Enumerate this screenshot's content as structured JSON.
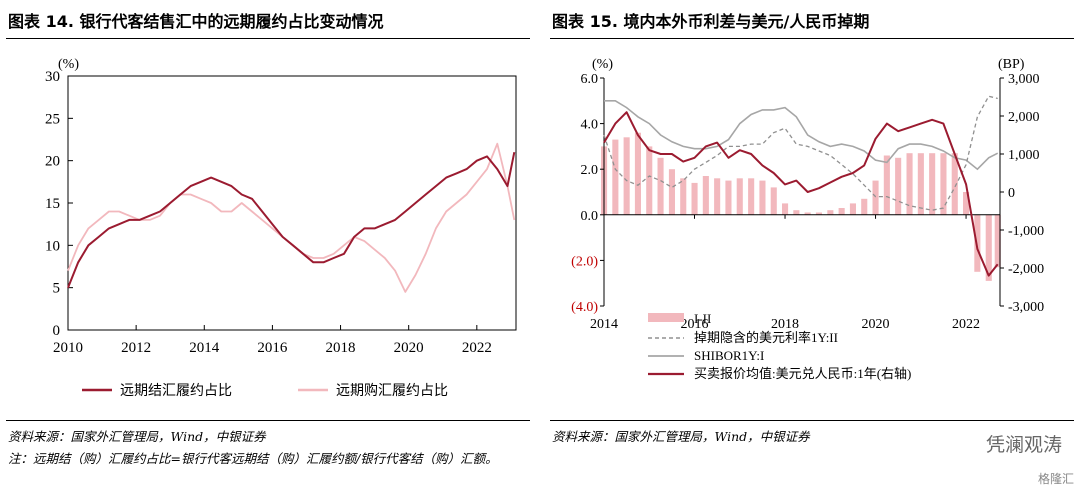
{
  "left_panel": {
    "title": "图表 14. 银行代客结售汇中的远期履约占比变动情况",
    "source": "资料来源：国家外汇管理局，Wind，中银证券",
    "note": "注：远期结（购）汇履约占比=银行代客远期结（购）汇履约额/银行代客结（购）汇额。"
  },
  "right_panel": {
    "title": "图表 15. 境内本外币利差与美元/人民币掉期",
    "source": "资料来源：国家外汇管理局，Wind，中银证券"
  },
  "watermark": {
    "name": "凭澜观涛",
    "brand": "格隆汇"
  },
  "chart_data": [
    {
      "type": "line",
      "title": "图表 14. 银行代客结售汇中的远期履约占比变动情况",
      "unit_label": "(%)",
      "xlim": [
        2010,
        2023.15
      ],
      "ylim": [
        0,
        30
      ],
      "x_ticks": [
        "2010",
        "2012",
        "2014",
        "2016",
        "2018",
        "2020",
        "2022"
      ],
      "y_ticks": [
        "0",
        "5",
        "10",
        "15",
        "20",
        "25",
        "30"
      ],
      "legend_position": "bottom",
      "colors": {
        "sell": "#9B1B30",
        "buy": "#F2B8BD"
      },
      "series": [
        {
          "name": "远期结汇履约占比",
          "x": [
            2010,
            2010.3,
            2010.6,
            2010.9,
            2011.2,
            2011.5,
            2011.8,
            2012.1,
            2012.4,
            2012.7,
            2013.0,
            2013.3,
            2013.6,
            2013.9,
            2014.2,
            2014.5,
            2014.8,
            2015.1,
            2015.4,
            2015.7,
            2016.0,
            2016.3,
            2016.6,
            2016.9,
            2017.2,
            2017.5,
            2017.8,
            2018.1,
            2018.4,
            2018.7,
            2019.0,
            2019.3,
            2019.6,
            2019.9,
            2020.2,
            2020.5,
            2020.8,
            2021.1,
            2021.4,
            2021.7,
            2022.0,
            2022.3,
            2022.6,
            2022.9,
            2023.1
          ],
          "values": [
            5,
            8,
            10,
            11,
            12,
            12.5,
            13,
            13,
            13.5,
            14,
            15,
            16,
            17,
            17.5,
            18,
            17.5,
            17,
            16,
            15.5,
            14,
            12.5,
            11,
            10,
            9,
            8,
            8,
            8.5,
            9,
            11,
            12,
            12,
            12.5,
            13,
            14,
            15,
            16,
            17,
            18,
            18.5,
            19,
            20,
            20.5,
            19,
            17,
            21
          ]
        },
        {
          "name": "远期购汇履约占比",
          "x": [
            2010,
            2010.3,
            2010.6,
            2010.9,
            2011.2,
            2011.5,
            2011.8,
            2012.1,
            2012.4,
            2012.7,
            2013.0,
            2013.3,
            2013.6,
            2013.9,
            2014.2,
            2014.5,
            2014.8,
            2015.1,
            2015.4,
            2015.7,
            2016.0,
            2016.3,
            2016.6,
            2016.9,
            2017.2,
            2017.5,
            2017.8,
            2018.1,
            2018.4,
            2018.7,
            2019.0,
            2019.3,
            2019.6,
            2019.9,
            2020.2,
            2020.5,
            2020.8,
            2021.1,
            2021.4,
            2021.7,
            2022.0,
            2022.3,
            2022.6,
            2022.9,
            2023.1
          ],
          "values": [
            7,
            10,
            12,
            13,
            14,
            14,
            13.5,
            13,
            13,
            13.5,
            15,
            16,
            16,
            15.5,
            15,
            14,
            14,
            15,
            14,
            13,
            12,
            11,
            10,
            9,
            8.5,
            8.5,
            9,
            10,
            11,
            10.5,
            9.5,
            8.5,
            7,
            4.5,
            6.5,
            9,
            12,
            14,
            15,
            16,
            17.5,
            19,
            22,
            17,
            13
          ]
        }
      ]
    },
    {
      "type": "bar+line",
      "title": "图表 15. 境内本外币利差与美元/人民币掉期",
      "left_unit_label": "(%)",
      "right_unit_label": "(BP)",
      "xlim": [
        2014,
        2022.75
      ],
      "ylim_left": [
        -4,
        6
      ],
      "ylim_right": [
        -3000,
        3000
      ],
      "x_ticks": [
        "2014",
        "2016",
        "2018",
        "2020",
        "2022"
      ],
      "y_ticks_left": [
        "(4.0)",
        "(2.0)",
        "0.0",
        "2.0",
        "4.0",
        "6.0"
      ],
      "y_ticks_right": [
        "-3,000",
        "-2,000",
        "-1,000",
        "0",
        "1,000",
        "2,000",
        "3,000"
      ],
      "legend_position": "bottom",
      "colors": {
        "bars": "#F2B8BD",
        "swap": "#9B1B30",
        "shibor": "#A6A6A6",
        "implied": "#909090",
        "negative_tick": "#C00000"
      },
      "x": [
        2014.0,
        2014.25,
        2014.5,
        2014.75,
        2015.0,
        2015.25,
        2015.5,
        2015.75,
        2016.0,
        2016.25,
        2016.5,
        2016.75,
        2017.0,
        2017.25,
        2017.5,
        2017.75,
        2018.0,
        2018.25,
        2018.5,
        2018.75,
        2019.0,
        2019.25,
        2019.5,
        2019.75,
        2020.0,
        2020.25,
        2020.5,
        2020.75,
        2021.0,
        2021.25,
        2021.5,
        2021.75,
        2022.0,
        2022.25,
        2022.5,
        2022.7
      ],
      "series": [
        {
          "name": "I-II",
          "axis": "left",
          "render": "bar",
          "values": [
            3.0,
            3.3,
            3.4,
            3.6,
            3.0,
            2.5,
            2.0,
            1.6,
            1.4,
            1.7,
            1.6,
            1.5,
            1.6,
            1.6,
            1.5,
            1.2,
            0.5,
            0.2,
            0.1,
            0.1,
            0.2,
            0.3,
            0.5,
            0.7,
            1.5,
            2.6,
            2.5,
            2.7,
            2.7,
            2.7,
            2.7,
            2.7,
            1.0,
            -2.5,
            -2.9,
            -2.3
          ]
        },
        {
          "name": "掉期隐含的美元利率1Y:II",
          "axis": "left",
          "render": "dashed-line",
          "values": [
            3.5,
            2.0,
            1.5,
            1.3,
            1.7,
            1.5,
            1.2,
            1.5,
            2.0,
            2.3,
            2.6,
            3.0,
            3.0,
            3.1,
            3.1,
            3.6,
            3.8,
            3.1,
            3.0,
            2.8,
            2.6,
            2.2,
            1.8,
            1.3,
            0.8,
            0.8,
            0.6,
            0.4,
            0.3,
            0.2,
            0.3,
            1.2,
            2.2,
            4.3,
            5.2,
            5.1
          ]
        },
        {
          "name": "SHIBOR1Y:I",
          "axis": "left",
          "render": "line",
          "values": [
            5.0,
            5.0,
            4.7,
            4.3,
            4.0,
            3.5,
            3.2,
            3.0,
            2.9,
            2.9,
            3.0,
            3.3,
            4.0,
            4.4,
            4.6,
            4.6,
            4.7,
            4.3,
            3.5,
            3.2,
            3.0,
            3.1,
            3.0,
            2.8,
            2.4,
            2.3,
            2.9,
            3.1,
            3.1,
            3.0,
            2.8,
            2.5,
            2.4,
            2.0,
            2.5,
            2.7
          ]
        },
        {
          "name": "买卖报价均值:美元兑人民币:1年(右轴)",
          "axis": "right",
          "render": "line",
          "values": [
            1300,
            1800,
            2100,
            1500,
            1100,
            1000,
            1000,
            800,
            900,
            1200,
            1300,
            900,
            1100,
            1000,
            700,
            500,
            200,
            300,
            0,
            100,
            250,
            400,
            500,
            700,
            1400,
            1800,
            1600,
            1700,
            1800,
            1900,
            1800,
            1000,
            200,
            -1500,
            -2200,
            -1900
          ]
        }
      ]
    }
  ]
}
